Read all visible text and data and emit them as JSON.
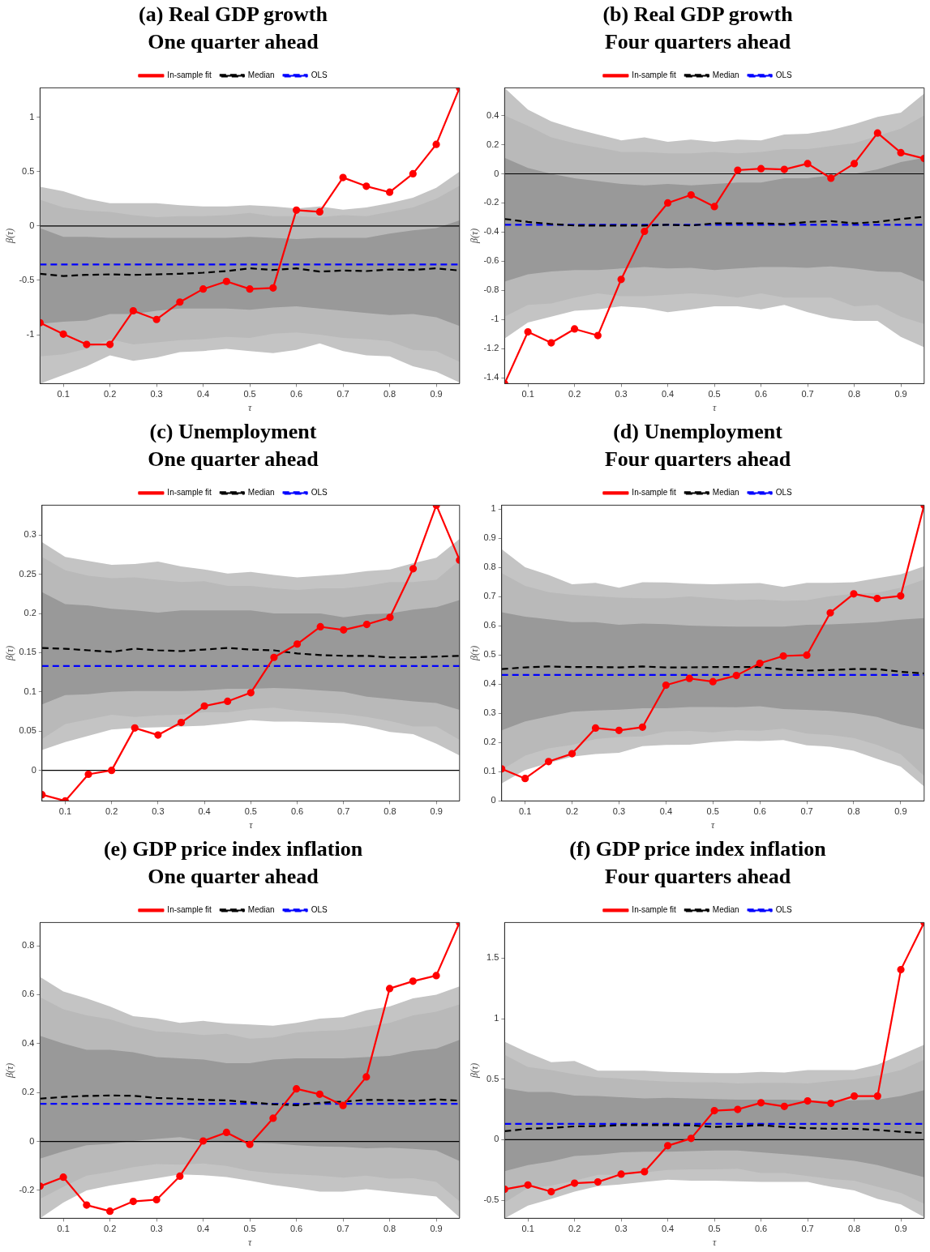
{
  "chart_data": [
    {
      "type": "line",
      "title": "(a) Real GDP growth",
      "subtitle": "One quarter ahead",
      "xlabel": "τ",
      "ylabel": "β(τ)",
      "x": [
        0.05,
        0.1,
        0.15,
        0.2,
        0.25,
        0.3,
        0.35,
        0.4,
        0.45,
        0.5,
        0.55,
        0.6,
        0.65,
        0.7,
        0.75,
        0.8,
        0.85,
        0.9,
        0.95
      ],
      "xlim": [
        0.05,
        0.95
      ],
      "xticks": [
        0.1,
        0.2,
        0.3,
        0.4,
        0.5,
        0.6,
        0.7,
        0.8,
        0.9
      ],
      "ylim": [
        -1.45,
        1.27
      ],
      "yticks": [
        -1,
        -0.5,
        0,
        0.5,
        1
      ],
      "legend": "top",
      "grid": false,
      "ref_lines": [
        {
          "axis": "y",
          "value": 0,
          "color": "#000000"
        }
      ],
      "series": [
        {
          "name": "In-sample fit",
          "type": "line",
          "color": "#ff0000",
          "marker": "circle",
          "values": [
            -0.89,
            -0.995,
            -1.09,
            -1.09,
            -0.78,
            -0.86,
            -0.7,
            -0.58,
            -0.51,
            -0.58,
            -0.57,
            0.145,
            0.13,
            0.445,
            0.365,
            0.31,
            0.48,
            0.75,
            1.27
          ]
        },
        {
          "name": "Median",
          "type": "line",
          "color": "#000000",
          "line_style": "dashed",
          "values": [
            -0.44,
            -0.46,
            -0.45,
            -0.445,
            -0.45,
            -0.445,
            -0.44,
            -0.43,
            -0.415,
            -0.39,
            -0.405,
            -0.39,
            -0.42,
            -0.41,
            -0.415,
            -0.4,
            -0.405,
            -0.39,
            -0.41
          ]
        },
        {
          "name": "OLS",
          "type": "line",
          "color": "#0000ff",
          "line_style": "dashed",
          "values": [
            -0.355,
            -0.355,
            -0.355,
            -0.355,
            -0.355,
            -0.355,
            -0.355,
            -0.355,
            -0.355,
            -0.355,
            -0.355,
            -0.355,
            -0.355,
            -0.355,
            -0.355,
            -0.355,
            -0.355,
            -0.355,
            -0.355
          ]
        },
        {
          "type": "line",
          "color": "#c4c4c4",
          "values": [
            null,
            null,
            null,
            null,
            null,
            null,
            null,
            null,
            null,
            null,
            null,
            null,
            null,
            null,
            null,
            null,
            null,
            null,
            null
          ],
          "upper": [
            0.36,
            0.32,
            0.25,
            0.21,
            0.21,
            0.21,
            0.19,
            0.18,
            0.18,
            0.19,
            0.18,
            0.16,
            0.18,
            0.15,
            0.17,
            0.21,
            0.26,
            0.35,
            0.5
          ],
          "lower": [
            -1.45,
            -1.37,
            -1.29,
            -1.19,
            -1.24,
            -1.21,
            -1.16,
            -1.15,
            -1.13,
            -1.15,
            -1.17,
            -1.14,
            -1.08,
            -1.15,
            -1.19,
            -1.2,
            -1.29,
            -1.34,
            -1.44
          ]
        },
        {
          "type": "line",
          "color": "#b9b9b9",
          "values": [
            null,
            null,
            null,
            null,
            null,
            null,
            null,
            null,
            null,
            null,
            null,
            null,
            null,
            null,
            null,
            null,
            null,
            null,
            null
          ],
          "upper": [
            0.24,
            0.17,
            0.14,
            0.13,
            0.1,
            0.08,
            0.09,
            0.09,
            0.1,
            0.12,
            0.09,
            0.09,
            0.08,
            0.1,
            0.09,
            0.13,
            0.17,
            0.25,
            0.37
          ],
          "lower": [
            -1.2,
            -1.18,
            -1.13,
            -1.04,
            -1.09,
            -1.07,
            -1.05,
            -1.04,
            -1.02,
            -1.03,
            -0.99,
            -0.98,
            -1.0,
            -1.03,
            -1.04,
            -1.06,
            -1.14,
            -1.15,
            -1.25
          ]
        },
        {
          "type": "line",
          "color": "#999999",
          "values": [
            null,
            null,
            null,
            null,
            null,
            null,
            null,
            null,
            null,
            null,
            null,
            null,
            null,
            null,
            null,
            null,
            null,
            null,
            null
          ],
          "upper": [
            -0.02,
            -0.1,
            -0.1,
            -0.11,
            -0.11,
            -0.11,
            -0.11,
            -0.11,
            -0.11,
            -0.1,
            -0.11,
            -0.12,
            -0.11,
            -0.11,
            -0.11,
            -0.07,
            -0.04,
            -0.02,
            0.05
          ],
          "lower": [
            -0.9,
            -0.88,
            -0.87,
            -0.81,
            -0.81,
            -0.78,
            -0.76,
            -0.76,
            -0.76,
            -0.77,
            -0.75,
            -0.74,
            -0.76,
            -0.78,
            -0.8,
            -0.82,
            -0.81,
            -0.84,
            -0.92
          ]
        }
      ]
    },
    {
      "type": "line",
      "title": "(b) Real GDP growth",
      "subtitle": "Four quarters ahead",
      "xlabel": "τ",
      "ylabel": "β(τ)",
      "x": [
        0.05,
        0.1,
        0.15,
        0.2,
        0.25,
        0.3,
        0.35,
        0.4,
        0.45,
        0.5,
        0.55,
        0.6,
        0.65,
        0.7,
        0.75,
        0.8,
        0.85,
        0.9,
        0.95
      ],
      "xlim": [
        0.05,
        0.95
      ],
      "xticks": [
        0.1,
        0.2,
        0.3,
        0.4,
        0.5,
        0.6,
        0.7,
        0.8,
        0.9
      ],
      "ylim": [
        -1.44,
        0.59
      ],
      "yticks": [
        -1.4,
        -1.2,
        -1,
        -0.8,
        -0.6,
        -0.4,
        -0.2,
        0,
        0.2,
        0.4
      ],
      "legend": "top",
      "grid": false,
      "ref_lines": [
        {
          "axis": "y",
          "value": 0,
          "color": "#000000"
        }
      ],
      "series": [
        {
          "name": "In-sample fit",
          "type": "line",
          "color": "#ff0000",
          "marker": "circle",
          "values": [
            -1.44,
            -1.085,
            -1.16,
            -1.065,
            -1.11,
            -0.725,
            -0.395,
            -0.2,
            -0.145,
            -0.225,
            0.025,
            0.035,
            0.03,
            0.07,
            -0.03,
            0.07,
            0.28,
            0.145,
            0.105
          ]
        },
        {
          "name": "Median",
          "type": "line",
          "color": "#000000",
          "line_style": "dashed",
          "values": [
            -0.31,
            -0.33,
            -0.345,
            -0.355,
            -0.355,
            -0.355,
            -0.355,
            -0.35,
            -0.355,
            -0.34,
            -0.34,
            -0.34,
            -0.345,
            -0.33,
            -0.325,
            -0.34,
            -0.33,
            -0.31,
            -0.295
          ]
        },
        {
          "name": "OLS",
          "type": "line",
          "color": "#0000ff",
          "line_style": "dashed",
          "values": [
            -0.35,
            -0.35,
            -0.35,
            -0.35,
            -0.35,
            -0.35,
            -0.35,
            -0.35,
            -0.35,
            -0.35,
            -0.35,
            -0.35,
            -0.35,
            -0.35,
            -0.35,
            -0.35,
            -0.35,
            -0.35,
            -0.35
          ]
        },
        {
          "type": "line",
          "color": "#c4c4c4",
          "values": [
            null,
            null,
            null,
            null,
            null,
            null,
            null,
            null,
            null,
            null,
            null,
            null,
            null,
            null,
            null,
            null,
            null,
            null,
            null
          ],
          "upper": [
            0.59,
            0.44,
            0.36,
            0.31,
            0.27,
            0.23,
            0.25,
            0.22,
            0.235,
            0.22,
            0.235,
            0.23,
            0.27,
            0.275,
            0.3,
            0.34,
            0.39,
            0.42,
            0.55
          ],
          "lower": [
            -1.13,
            -1.02,
            -0.98,
            -0.94,
            -0.93,
            -0.91,
            -0.92,
            -0.95,
            -0.93,
            -0.91,
            -0.91,
            -0.93,
            -0.9,
            -0.95,
            -0.99,
            -1.01,
            -1.01,
            -1.12,
            -1.19
          ]
        },
        {
          "type": "line",
          "color": "#b9b9b9",
          "values": [
            null,
            null,
            null,
            null,
            null,
            null,
            null,
            null,
            null,
            null,
            null,
            null,
            null,
            null,
            null,
            null,
            null,
            null,
            null
          ],
          "upper": [
            0.4,
            0.33,
            0.25,
            0.21,
            0.18,
            0.15,
            0.15,
            0.14,
            0.14,
            0.15,
            0.14,
            0.15,
            0.17,
            0.17,
            0.19,
            0.21,
            0.26,
            0.31,
            0.4
          ],
          "lower": [
            -0.98,
            -0.9,
            -0.89,
            -0.85,
            -0.82,
            -0.84,
            -0.84,
            -0.83,
            -0.82,
            -0.83,
            -0.85,
            -0.82,
            -0.85,
            -0.85,
            -0.85,
            -0.91,
            -0.9,
            -0.98,
            -1.03
          ]
        },
        {
          "type": "line",
          "color": "#999999",
          "values": [
            null,
            null,
            null,
            null,
            null,
            null,
            null,
            null,
            null,
            null,
            null,
            null,
            null,
            null,
            null,
            null,
            null,
            null,
            null
          ],
          "upper": [
            0.11,
            0.04,
            0.0,
            -0.03,
            -0.05,
            -0.07,
            -0.08,
            -0.07,
            -0.08,
            -0.07,
            -0.06,
            -0.06,
            -0.03,
            -0.03,
            -0.01,
            0.0,
            0.03,
            0.08,
            0.11
          ],
          "lower": [
            -0.74,
            -0.69,
            -0.67,
            -0.66,
            -0.66,
            -0.65,
            -0.64,
            -0.65,
            -0.645,
            -0.66,
            -0.65,
            -0.64,
            -0.64,
            -0.645,
            -0.635,
            -0.65,
            -0.67,
            -0.675,
            -0.74
          ]
        }
      ]
    },
    {
      "type": "line",
      "title": "(c) Unemployment",
      "subtitle": "One quarter ahead",
      "xlabel": "τ",
      "ylabel": "β(τ)",
      "x": [
        0.05,
        0.1,
        0.15,
        0.2,
        0.25,
        0.3,
        0.35,
        0.4,
        0.45,
        0.5,
        0.55,
        0.6,
        0.65,
        0.7,
        0.75,
        0.8,
        0.85,
        0.9,
        0.95
      ],
      "xlim": [
        0.05,
        0.95
      ],
      "xticks": [
        0.1,
        0.2,
        0.3,
        0.4,
        0.5,
        0.6,
        0.7,
        0.8,
        0.9
      ],
      "ylim": [
        -0.039,
        0.338
      ],
      "yticks": [
        0,
        0.05,
        0.1,
        0.15,
        0.2,
        0.25,
        0.3
      ],
      "legend": "top",
      "grid": false,
      "ref_lines": [
        {
          "axis": "y",
          "value": 0,
          "color": "#000000"
        }
      ],
      "series": [
        {
          "name": "In-sample fit",
          "type": "line",
          "color": "#ff0000",
          "marker": "circle",
          "values": [
            -0.031,
            -0.039,
            -0.005,
            0,
            0.054,
            0.045,
            0.061,
            0.082,
            0.088,
            0.099,
            0.144,
            0.161,
            0.183,
            0.179,
            0.186,
            0.195,
            0.257,
            0.338,
            0.268
          ]
        },
        {
          "name": "Median",
          "type": "line",
          "color": "#000000",
          "line_style": "dashed",
          "values": [
            0.156,
            0.155,
            0.153,
            0.151,
            0.155,
            0.153,
            0.152,
            0.154,
            0.156,
            0.154,
            0.153,
            0.149,
            0.147,
            0.146,
            0.146,
            0.144,
            0.144,
            0.145,
            0.146
          ]
        },
        {
          "name": "OLS",
          "type": "line",
          "color": "#0000ff",
          "line_style": "dashed",
          "values": [
            0.133,
            0.133,
            0.133,
            0.133,
            0.133,
            0.133,
            0.133,
            0.133,
            0.133,
            0.133,
            0.133,
            0.133,
            0.133,
            0.133,
            0.133,
            0.133,
            0.133,
            0.133,
            0.133
          ]
        },
        {
          "type": "line",
          "color": "#c4c4c4",
          "values": [
            null,
            null,
            null,
            null,
            null,
            null,
            null,
            null,
            null,
            null,
            null,
            null,
            null,
            null,
            null,
            null,
            null,
            null,
            null
          ],
          "upper": [
            0.291,
            0.272,
            0.267,
            0.262,
            0.263,
            0.266,
            0.26,
            0.256,
            0.251,
            0.253,
            0.249,
            0.246,
            0.248,
            0.25,
            0.254,
            0.256,
            0.264,
            0.271,
            0.295
          ],
          "lower": [
            0.026,
            0.036,
            0.044,
            0.052,
            0.054,
            0.055,
            0.056,
            0.057,
            0.06,
            0.064,
            0.062,
            0.062,
            0.061,
            0.06,
            0.056,
            0.049,
            0.046,
            0.034,
            0.019
          ]
        },
        {
          "type": "line",
          "color": "#b9b9b9",
          "values": [
            null,
            null,
            null,
            null,
            null,
            null,
            null,
            null,
            null,
            null,
            null,
            null,
            null,
            null,
            null,
            null,
            null,
            null,
            null
          ],
          "upper": [
            0.272,
            0.255,
            0.248,
            0.245,
            0.246,
            0.243,
            0.24,
            0.241,
            0.235,
            0.235,
            0.232,
            0.23,
            0.232,
            0.232,
            0.235,
            0.24,
            0.24,
            0.243,
            0.268
          ],
          "lower": [
            0.04,
            0.059,
            0.065,
            0.071,
            0.068,
            0.07,
            0.071,
            0.074,
            0.074,
            0.078,
            0.08,
            0.076,
            0.074,
            0.072,
            0.068,
            0.063,
            0.056,
            0.056,
            0.039
          ]
        },
        {
          "type": "line",
          "color": "#999999",
          "values": [
            null,
            null,
            null,
            null,
            null,
            null,
            null,
            null,
            null,
            null,
            null,
            null,
            null,
            null,
            null,
            null,
            null,
            null,
            null
          ],
          "upper": [
            0.227,
            0.212,
            0.21,
            0.206,
            0.204,
            0.201,
            0.204,
            0.204,
            0.204,
            0.204,
            0.2,
            0.2,
            0.2,
            0.195,
            0.199,
            0.2,
            0.205,
            0.208,
            0.217
          ],
          "lower": [
            0.084,
            0.096,
            0.097,
            0.1,
            0.101,
            0.101,
            0.101,
            0.102,
            0.104,
            0.104,
            0.105,
            0.104,
            0.102,
            0.1,
            0.094,
            0.091,
            0.088,
            0.086,
            0.077
          ]
        }
      ]
    },
    {
      "type": "line",
      "title": "(d) Unemployment",
      "subtitle": "Four quarters ahead",
      "xlabel": "τ",
      "ylabel": "β(τ)",
      "x": [
        0.05,
        0.1,
        0.15,
        0.2,
        0.25,
        0.3,
        0.35,
        0.4,
        0.45,
        0.5,
        0.55,
        0.6,
        0.65,
        0.7,
        0.75,
        0.8,
        0.85,
        0.9,
        0.95
      ],
      "xlim": [
        0.05,
        0.95
      ],
      "xticks": [
        0.1,
        0.2,
        0.3,
        0.4,
        0.5,
        0.6,
        0.7,
        0.8,
        0.9
      ],
      "ylim": [
        0,
        1.014
      ],
      "yticks": [
        0,
        0.1,
        0.2,
        0.3,
        0.4,
        0.5,
        0.6,
        0.7,
        0.8,
        0.9,
        1
      ],
      "legend": "top",
      "grid": false,
      "series": [
        {
          "name": "In-sample fit",
          "type": "line",
          "color": "#ff0000",
          "marker": "circle",
          "values": [
            0.11,
            0.077,
            0.135,
            0.162,
            0.25,
            0.242,
            0.253,
            0.397,
            0.42,
            0.409,
            0.43,
            0.472,
            0.497,
            0.5,
            0.645,
            0.71,
            0.694,
            0.703,
            1.014
          ]
        },
        {
          "name": "Median",
          "type": "line",
          "color": "#000000",
          "line_style": "dashed",
          "values": [
            0.452,
            0.458,
            0.461,
            0.459,
            0.459,
            0.458,
            0.461,
            0.458,
            0.458,
            0.459,
            0.459,
            0.459,
            0.451,
            0.447,
            0.449,
            0.452,
            0.452,
            0.443,
            0.437
          ]
        },
        {
          "name": "OLS",
          "type": "line",
          "color": "#0000ff",
          "line_style": "dashed",
          "values": [
            0.432,
            0.432,
            0.432,
            0.432,
            0.432,
            0.432,
            0.432,
            0.432,
            0.432,
            0.432,
            0.432,
            0.432,
            0.432,
            0.432,
            0.432,
            0.432,
            0.432,
            0.432,
            0.432
          ]
        },
        {
          "type": "line",
          "color": "#c4c4c4",
          "values": [
            null,
            null,
            null,
            null,
            null,
            null,
            null,
            null,
            null,
            null,
            null,
            null,
            null,
            null,
            null,
            null,
            null,
            null,
            null
          ],
          "upper": [
            0.863,
            0.801,
            0.775,
            0.743,
            0.748,
            0.731,
            0.75,
            0.749,
            0.745,
            0.743,
            0.745,
            0.747,
            0.734,
            0.748,
            0.748,
            0.75,
            0.764,
            0.777,
            0.805
          ],
          "lower": [
            0.06,
            0.106,
            0.13,
            0.152,
            0.161,
            0.165,
            0.188,
            0.192,
            0.193,
            0.202,
            0.207,
            0.205,
            0.209,
            0.191,
            0.186,
            0.172,
            0.144,
            0.118,
            0.05
          ]
        },
        {
          "type": "line",
          "color": "#b9b9b9",
          "values": [
            null,
            null,
            null,
            null,
            null,
            null,
            null,
            null,
            null,
            null,
            null,
            null,
            null,
            null,
            null,
            null,
            null,
            null,
            null
          ],
          "upper": [
            0.781,
            0.737,
            0.716,
            0.707,
            0.702,
            0.697,
            0.695,
            0.695,
            0.701,
            0.695,
            0.689,
            0.691,
            0.686,
            0.688,
            0.702,
            0.71,
            0.714,
            0.731,
            0.759
          ],
          "lower": [
            0.107,
            0.155,
            0.18,
            0.192,
            0.212,
            0.219,
            0.221,
            0.238,
            0.24,
            0.235,
            0.243,
            0.241,
            0.248,
            0.231,
            0.226,
            0.216,
            0.192,
            0.16,
            0.086
          ]
        },
        {
          "type": "line",
          "color": "#999999",
          "values": [
            null,
            null,
            null,
            null,
            null,
            null,
            null,
            null,
            null,
            null,
            null,
            null,
            null,
            null,
            null,
            null,
            null,
            null,
            null
          ],
          "upper": [
            0.647,
            0.632,
            0.623,
            0.613,
            0.613,
            0.604,
            0.608,
            0.606,
            0.601,
            0.599,
            0.598,
            0.598,
            0.598,
            0.604,
            0.605,
            0.609,
            0.613,
            0.621,
            0.627
          ],
          "lower": [
            0.242,
            0.273,
            0.29,
            0.306,
            0.31,
            0.313,
            0.318,
            0.318,
            0.322,
            0.322,
            0.321,
            0.325,
            0.315,
            0.312,
            0.309,
            0.301,
            0.288,
            0.262,
            0.245
          ]
        }
      ]
    },
    {
      "type": "line",
      "title": "(e) GDP price index inflation",
      "subtitle": "One quarter ahead",
      "xlabel": "τ",
      "ylabel": "β(τ)",
      "x": [
        0.05,
        0.1,
        0.15,
        0.2,
        0.25,
        0.3,
        0.35,
        0.4,
        0.45,
        0.5,
        0.55,
        0.6,
        0.65,
        0.7,
        0.75,
        0.8,
        0.85,
        0.9,
        0.95
      ],
      "xlim": [
        0.05,
        0.95
      ],
      "xticks": [
        0.1,
        0.2,
        0.3,
        0.4,
        0.5,
        0.6,
        0.7,
        0.8,
        0.9
      ],
      "ylim": [
        -0.314,
        0.895
      ],
      "yticks": [
        -0.2,
        0,
        0.2,
        0.4,
        0.6,
        0.8
      ],
      "legend": "top",
      "grid": false,
      "ref_lines": [
        {
          "axis": "y",
          "value": 0,
          "color": "#000000"
        }
      ],
      "series": [
        {
          "name": "In-sample fit",
          "type": "line",
          "color": "#ff0000",
          "marker": "circle",
          "values": [
            -0.183,
            -0.146,
            -0.26,
            -0.285,
            -0.245,
            -0.238,
            -0.142,
            0.002,
            0.037,
            -0.012,
            0.095,
            0.215,
            0.193,
            0.147,
            0.264,
            0.625,
            0.655,
            0.678,
            0.895
          ]
        },
        {
          "name": "Median",
          "type": "line",
          "color": "#000000",
          "line_style": "dashed",
          "values": [
            0.175,
            0.182,
            0.186,
            0.188,
            0.187,
            0.178,
            0.175,
            0.17,
            0.168,
            0.16,
            0.152,
            0.148,
            0.158,
            0.163,
            0.17,
            0.169,
            0.166,
            0.172,
            0.167
          ]
        },
        {
          "name": "OLS",
          "type": "line",
          "color": "#0000ff",
          "line_style": "dashed",
          "values": [
            0.154,
            0.154,
            0.154,
            0.154,
            0.154,
            0.154,
            0.154,
            0.154,
            0.154,
            0.154,
            0.154,
            0.154,
            0.154,
            0.154,
            0.154,
            0.154,
            0.154,
            0.154,
            0.154
          ]
        },
        {
          "type": "line",
          "color": "#c4c4c4",
          "values": [
            null,
            null,
            null,
            null,
            null,
            null,
            null,
            null,
            null,
            null,
            null,
            null,
            null,
            null,
            null,
            null,
            null,
            null,
            null
          ],
          "upper": [
            0.673,
            0.613,
            0.585,
            0.552,
            0.512,
            0.503,
            0.485,
            0.493,
            0.482,
            0.478,
            0.473,
            0.485,
            0.502,
            0.508,
            0.536,
            0.552,
            0.585,
            0.6,
            0.634
          ],
          "lower": [
            -0.314,
            -0.25,
            -0.2,
            -0.18,
            -0.165,
            -0.15,
            -0.135,
            -0.138,
            -0.145,
            -0.16,
            -0.178,
            -0.19,
            -0.205,
            -0.205,
            -0.195,
            -0.205,
            -0.215,
            -0.225,
            -0.31
          ]
        },
        {
          "type": "line",
          "color": "#b9b9b9",
          "values": [
            null,
            null,
            null,
            null,
            null,
            null,
            null,
            null,
            null,
            null,
            null,
            null,
            null,
            null,
            null,
            null,
            null,
            null,
            null
          ],
          "upper": [
            0.59,
            0.54,
            0.515,
            0.5,
            0.47,
            0.45,
            0.445,
            0.435,
            0.44,
            0.42,
            0.425,
            0.445,
            0.452,
            0.455,
            0.47,
            0.485,
            0.515,
            0.53,
            0.56
          ],
          "lower": [
            -0.235,
            -0.185,
            -0.14,
            -0.125,
            -0.105,
            -0.092,
            -0.095,
            -0.09,
            -0.1,
            -0.12,
            -0.13,
            -0.135,
            -0.14,
            -0.148,
            -0.14,
            -0.152,
            -0.15,
            -0.165,
            -0.245
          ]
        },
        {
          "type": "line",
          "color": "#999999",
          "values": [
            null,
            null,
            null,
            null,
            null,
            null,
            null,
            null,
            null,
            null,
            null,
            null,
            null,
            null,
            null,
            null,
            null,
            null,
            null
          ],
          "upper": [
            0.432,
            0.4,
            0.375,
            0.375,
            0.365,
            0.345,
            0.34,
            0.335,
            0.32,
            0.32,
            0.335,
            0.34,
            0.34,
            0.34,
            0.345,
            0.35,
            0.37,
            0.38,
            0.415
          ],
          "lower": [
            -0.07,
            -0.04,
            -0.015,
            -0.01,
            0.002,
            0.01,
            0.018,
            0.002,
            -0.003,
            -0.005,
            -0.008,
            -0.015,
            -0.02,
            -0.022,
            -0.028,
            -0.025,
            -0.03,
            -0.037,
            -0.08
          ]
        }
      ]
    },
    {
      "type": "line",
      "title": "(f) GDP price index inflation",
      "subtitle": "Four quarters ahead",
      "xlabel": "τ",
      "ylabel": "β(τ)",
      "x": [
        0.05,
        0.1,
        0.15,
        0.2,
        0.25,
        0.3,
        0.35,
        0.4,
        0.45,
        0.5,
        0.55,
        0.6,
        0.65,
        0.7,
        0.75,
        0.8,
        0.85,
        0.9,
        0.95
      ],
      "xlim": [
        0.05,
        0.95
      ],
      "xticks": [
        0.1,
        0.2,
        0.3,
        0.4,
        0.5,
        0.6,
        0.7,
        0.8,
        0.9
      ],
      "ylim": [
        -0.65,
        1.795
      ],
      "yticks": [
        -0.5,
        0,
        0.5,
        1,
        1.5
      ],
      "legend": "top",
      "grid": false,
      "ref_lines": [
        {
          "axis": "y",
          "value": 0,
          "color": "#000000"
        }
      ],
      "series": [
        {
          "name": "In-sample fit",
          "type": "line",
          "color": "#ff0000",
          "marker": "circle",
          "values": [
            -0.41,
            -0.375,
            -0.43,
            -0.36,
            -0.35,
            -0.285,
            -0.265,
            -0.05,
            0.01,
            0.24,
            0.25,
            0.305,
            0.275,
            0.32,
            0.3,
            0.36,
            0.36,
            1.405,
            1.795
          ]
        },
        {
          "name": "Median",
          "type": "line",
          "color": "#000000",
          "line_style": "dashed",
          "values": [
            0.07,
            0.09,
            0.097,
            0.11,
            0.112,
            0.12,
            0.12,
            0.12,
            0.118,
            0.105,
            0.11,
            0.12,
            0.105,
            0.095,
            0.09,
            0.09,
            0.08,
            0.065,
            0.055
          ]
        },
        {
          "name": "OLS",
          "type": "line",
          "color": "#0000ff",
          "line_style": "dashed",
          "values": [
            0.13,
            0.13,
            0.13,
            0.13,
            0.13,
            0.13,
            0.13,
            0.13,
            0.13,
            0.13,
            0.13,
            0.13,
            0.13,
            0.13,
            0.13,
            0.13,
            0.13,
            0.13,
            0.13
          ]
        },
        {
          "type": "line",
          "color": "#c4c4c4",
          "values": [
            null,
            null,
            null,
            null,
            null,
            null,
            null,
            null,
            null,
            null,
            null,
            null,
            null,
            null,
            null,
            null,
            null,
            null,
            null
          ],
          "upper": [
            0.81,
            0.72,
            0.64,
            0.65,
            0.57,
            0.57,
            0.57,
            0.56,
            0.555,
            0.55,
            0.55,
            0.56,
            0.555,
            0.575,
            0.575,
            0.575,
            0.62,
            0.7,
            0.785
          ],
          "lower": [
            -0.65,
            -0.545,
            -0.49,
            -0.43,
            -0.385,
            -0.37,
            -0.35,
            -0.33,
            -0.34,
            -0.34,
            -0.345,
            -0.35,
            -0.35,
            -0.35,
            -0.39,
            -0.42,
            -0.49,
            -0.535,
            -0.64
          ]
        },
        {
          "type": "line",
          "color": "#b9b9b9",
          "values": [
            null,
            null,
            null,
            null,
            null,
            null,
            null,
            null,
            null,
            null,
            null,
            null,
            null,
            null,
            null,
            null,
            null,
            null,
            null
          ],
          "upper": [
            0.7,
            0.6,
            0.575,
            0.54,
            0.515,
            0.505,
            0.49,
            0.48,
            0.475,
            0.475,
            0.465,
            0.47,
            0.47,
            0.465,
            0.485,
            0.5,
            0.53,
            0.575,
            0.66
          ],
          "lower": [
            -0.52,
            -0.4,
            -0.38,
            -0.34,
            -0.29,
            -0.29,
            -0.27,
            -0.25,
            -0.245,
            -0.245,
            -0.24,
            -0.275,
            -0.275,
            -0.3,
            -0.325,
            -0.34,
            -0.39,
            -0.44,
            -0.53
          ]
        },
        {
          "type": "line",
          "color": "#999999",
          "values": [
            null,
            null,
            null,
            null,
            null,
            null,
            null,
            null,
            null,
            null,
            null,
            null,
            null,
            null,
            null,
            null,
            null,
            null,
            null
          ],
          "upper": [
            0.425,
            0.395,
            0.395,
            0.365,
            0.36,
            0.35,
            0.34,
            0.345,
            0.34,
            0.335,
            0.33,
            0.33,
            0.33,
            0.325,
            0.32,
            0.325,
            0.33,
            0.36,
            0.41
          ],
          "lower": [
            -0.26,
            -0.21,
            -0.18,
            -0.135,
            -0.125,
            -0.105,
            -0.1,
            -0.1,
            -0.095,
            -0.09,
            -0.09,
            -0.105,
            -0.12,
            -0.135,
            -0.155,
            -0.175,
            -0.21,
            -0.26,
            -0.31
          ]
        }
      ]
    }
  ]
}
